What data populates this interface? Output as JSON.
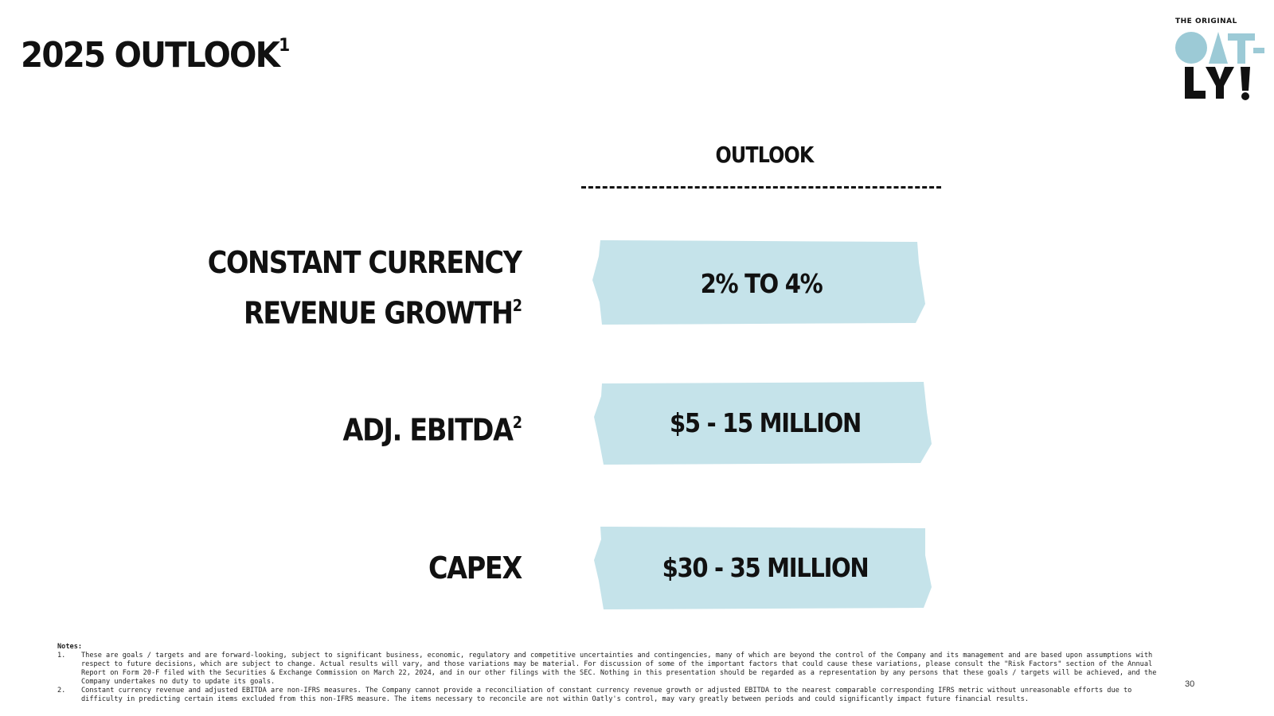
{
  "slide": {
    "title": "2025 OUTLOOK",
    "title_sup": "1",
    "page_number": "30"
  },
  "logo": {
    "tagline": "THE ORIGINAL",
    "wordmark": "OAT-LY!"
  },
  "table": {
    "column_header": "OUTLOOK",
    "rows": [
      {
        "label_line1": "CONSTANT CURRENCY",
        "label_line2": "REVENUE GROWTH",
        "label_sup": "2",
        "value": "2% TO 4%"
      },
      {
        "label_line1": "ADJ. EBITDA",
        "label_sup": "2",
        "value": "$5 - 15 MILLION"
      },
      {
        "label_line1": "CAPEX",
        "value": "$30 - 35 MILLION"
      }
    ]
  },
  "notes": {
    "heading": "Notes:",
    "items": [
      {
        "num": "1.",
        "text": "These are goals / targets and are forward-looking, subject to significant business, economic, regulatory and competitive uncertainties and contingencies, many of which are beyond the control of the Company and its management and are based upon assumptions with respect to future decisions, which are subject to change. Actual results will vary, and those variations may be material. For discussion of some of the important factors that could cause these variations, please consult the \"Risk Factors\" section of the Annual Report on Form 20-F filed with the Securities & Exchange Commission on March 22, 2024, and in our other filings with the SEC. Nothing in this presentation should be regarded as a representation by any persons that these goals / targets will be achieved, and the Company undertakes no duty to update its goals."
      },
      {
        "num": "2.",
        "text": "Constant currency revenue and adjusted EBITDA are non-IFRS measures. The Company cannot provide a reconciliation of constant currency revenue growth or adjusted EBITDA to the nearest comparable corresponding IFRS metric without unreasonable efforts due to difficulty in predicting certain items excluded from this non-IFRS measure. The items necessary to reconcile are not within Oatly's control, may vary greatly between periods and could significantly impact future financial results."
      }
    ]
  },
  "colors": {
    "box_fill": "#c5e3ea",
    "logo_blue": "#9ccad6",
    "text": "#111111"
  }
}
